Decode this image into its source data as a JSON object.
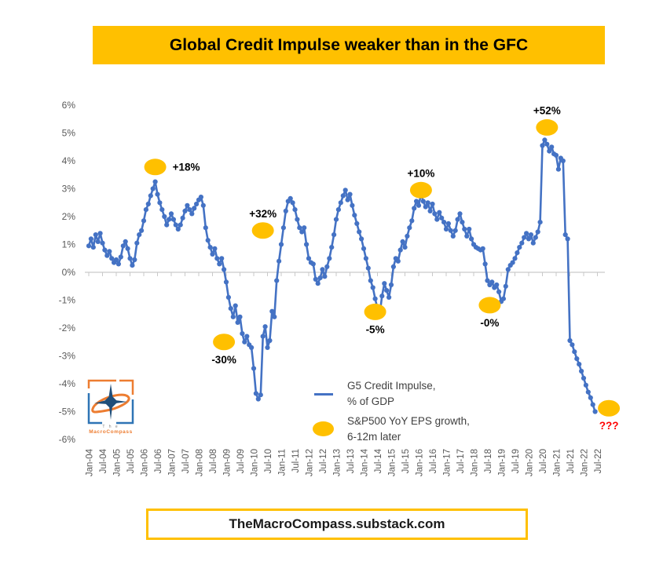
{
  "title": "Global Credit Impulse weaker than in the GFC",
  "footer": "TheMacroCompass.substack.com",
  "logo": {
    "line1": "The",
    "line2": "MacroCompass"
  },
  "colors": {
    "accent_yellow": "#FFC000",
    "line_blue": "#4472C4",
    "annotation_red": "#FF0000",
    "axis_text_gray": "#595959",
    "axis_line_gray": "#C9C9C9",
    "legend_text": "#404040"
  },
  "legend": {
    "items": [
      {
        "swatch": "line",
        "line1": "G5 Credit Impulse,",
        "line2": "% of GDP"
      },
      {
        "swatch": "ellipse",
        "line1": "S&P500 YoY EPS growth,",
        "line2": "6-12m later"
      }
    ]
  },
  "chart_data": {
    "type": "line",
    "title": "Global Credit Impulse weaker than in the GFC",
    "xlabel": "",
    "ylabel": "G5 Credit Impulse, % of GDP",
    "ylim": [
      -6,
      6
    ],
    "grid": "zero-axis-only",
    "legend_position": "inside-bottom-center",
    "y_ticks": [
      "6%",
      "5%",
      "4%",
      "3%",
      "2%",
      "1%",
      "0%",
      "-1%",
      "-2%",
      "-3%",
      "-4%",
      "-5%",
      "-6%"
    ],
    "y_tick_values": [
      6,
      5,
      4,
      3,
      2,
      1,
      0,
      -1,
      -2,
      -3,
      -4,
      -5,
      -6
    ],
    "x_tick_labels": [
      "Jan-04",
      "Jul-04",
      "Jan-05",
      "Jul-05",
      "Jan-06",
      "Jul-06",
      "Jan-07",
      "Jul-07",
      "Jan-08",
      "Jul-08",
      "Jan-09",
      "Jul-09",
      "Jan-10",
      "Jul-10",
      "Jan-11",
      "Jul-11",
      "Jan-12",
      "Jul-12",
      "Jan-13",
      "Jul-13",
      "Jan-14",
      "Jul-14",
      "Jan-15",
      "Jul-15",
      "Jan-16",
      "Jul-16",
      "Jan-17",
      "Jul-17",
      "Jan-18",
      "Jul-18",
      "Jan-19",
      "Jul-19",
      "Jan-20",
      "Jul-20",
      "Jan-21",
      "Jul-21",
      "Jan-22",
      "Jul-22"
    ],
    "series": [
      {
        "name": "G5 Credit Impulse, % of GDP",
        "unit": "% of GDP",
        "frequency": "monthly",
        "start": "Jan-04",
        "end": "Jun-22",
        "values": [
          0.95,
          1.2,
          0.9,
          1.35,
          1.1,
          1.4,
          1.05,
          0.8,
          0.6,
          0.75,
          0.5,
          0.35,
          0.45,
          0.3,
          0.55,
          0.95,
          1.1,
          0.85,
          0.5,
          0.25,
          0.45,
          1.05,
          1.35,
          1.5,
          1.85,
          2.25,
          2.45,
          2.75,
          3.0,
          3.25,
          2.8,
          2.5,
          2.25,
          2.0,
          1.7,
          1.9,
          2.1,
          1.9,
          1.7,
          1.55,
          1.7,
          1.95,
          2.2,
          2.4,
          2.25,
          2.1,
          2.3,
          2.45,
          2.6,
          2.7,
          2.4,
          1.6,
          1.15,
          0.9,
          0.65,
          0.85,
          0.5,
          0.3,
          0.5,
          0.1,
          -0.35,
          -0.9,
          -1.3,
          -1.6,
          -1.2,
          -1.8,
          -1.6,
          -2.2,
          -2.5,
          -2.3,
          -2.6,
          -2.7,
          -3.45,
          -4.35,
          -4.55,
          -4.4,
          -2.3,
          -1.95,
          -2.7,
          -2.45,
          -1.4,
          -1.6,
          -0.3,
          0.4,
          1.0,
          1.6,
          2.2,
          2.55,
          2.65,
          2.5,
          2.25,
          1.9,
          1.6,
          1.45,
          1.6,
          1.0,
          0.5,
          0.35,
          0.3,
          -0.25,
          -0.4,
          -0.2,
          0.1,
          -0.15,
          0.2,
          0.5,
          0.9,
          1.35,
          1.9,
          2.25,
          2.5,
          2.75,
          2.95,
          2.6,
          2.8,
          2.4,
          2.05,
          1.75,
          1.45,
          1.2,
          0.85,
          0.5,
          0.15,
          -0.3,
          -0.55,
          -0.95,
          -1.3,
          -1.5,
          -0.85,
          -0.4,
          -0.65,
          -0.9,
          -0.45,
          0.2,
          0.5,
          0.4,
          0.8,
          1.1,
          0.9,
          1.3,
          1.6,
          1.85,
          2.3,
          2.55,
          2.4,
          2.8,
          2.55,
          2.35,
          2.5,
          2.2,
          2.45,
          2.1,
          1.9,
          2.15,
          1.95,
          1.8,
          1.55,
          1.75,
          1.5,
          1.3,
          1.5,
          1.9,
          2.1,
          1.8,
          1.55,
          1.3,
          1.55,
          1.2,
          1.0,
          0.9,
          0.85,
          0.8,
          0.85,
          0.3,
          -0.3,
          -0.45,
          -0.35,
          -0.55,
          -0.45,
          -0.7,
          -1.05,
          -0.95,
          -0.5,
          0.1,
          0.25,
          0.35,
          0.5,
          0.7,
          0.9,
          1.05,
          1.25,
          1.4,
          1.2,
          1.35,
          1.05,
          1.25,
          1.45,
          1.8,
          4.55,
          4.75,
          4.6,
          4.35,
          4.5,
          4.25,
          4.2,
          3.7,
          4.1,
          4.0,
          1.35,
          1.2,
          -2.45,
          -2.6,
          -2.85,
          -3.1,
          -3.3,
          -3.55,
          -3.8,
          -4.05,
          -4.3,
          -4.5,
          -4.75,
          -5.0
        ]
      }
    ],
    "annotations": [
      {
        "label": "+18%",
        "series": "S&P500 YoY EPS growth, 6-12m later",
        "month": "Jun-06",
        "month_index": 29,
        "y_pct": 3.78,
        "label_position": "right",
        "label_color": "#000000"
      },
      {
        "label": "-30%",
        "series": "S&P500 YoY EPS growth, 6-12m later",
        "month": "Dec-08",
        "month_index": 59,
        "y_pct": -2.5,
        "label_position": "below",
        "label_color": "#000000"
      },
      {
        "label": "+32%",
        "series": "S&P500 YoY EPS growth, 6-12m later",
        "month": "May-10",
        "month_index": 76,
        "y_pct": 1.5,
        "label_position": "above",
        "label_color": "#000000"
      },
      {
        "label": "-5%",
        "series": "S&P500 YoY EPS growth, 6-12m later",
        "month": "Jun-14",
        "month_index": 125,
        "y_pct": -1.42,
        "label_position": "below",
        "label_color": "#000000"
      },
      {
        "label": "+10%",
        "series": "S&P500 YoY EPS growth, 6-12m later",
        "month": "Jan-16",
        "month_index": 145,
        "y_pct": 2.95,
        "label_position": "above",
        "label_color": "#000000"
      },
      {
        "label": "-0%",
        "series": "S&P500 YoY EPS growth, 6-12m later",
        "month": "Jul-18",
        "month_index": 175,
        "y_pct": -1.18,
        "label_position": "below",
        "label_color": "#000000"
      },
      {
        "label": "+52%",
        "series": "S&P500 YoY EPS growth, 6-12m later",
        "month": "Aug-20",
        "month_index": 200,
        "y_pct": 5.2,
        "label_position": "above",
        "label_color": "#000000"
      },
      {
        "label": "???",
        "series": "S&P500 YoY EPS growth, 6-12m later",
        "month": "Jul-22",
        "month_index": 227,
        "y_pct": -4.88,
        "label_position": "below",
        "label_color": "#FF0000"
      }
    ]
  }
}
